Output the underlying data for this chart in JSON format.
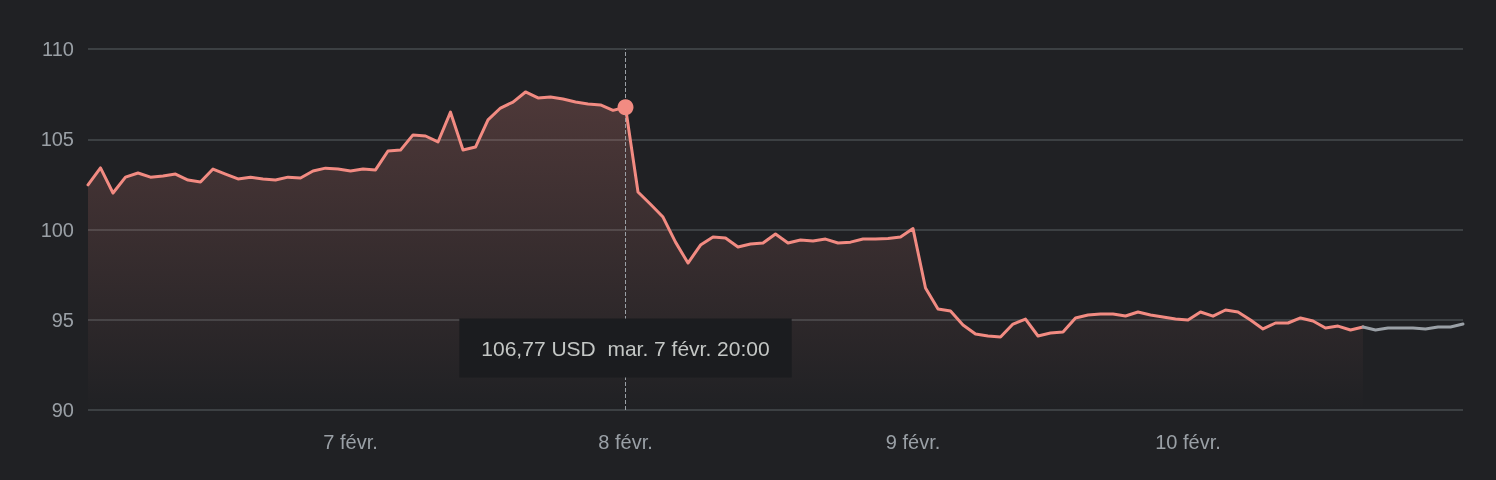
{
  "chart_data": {
    "type": "area",
    "categories": [
      null,
      null,
      null,
      null,
      null,
      null,
      null,
      null,
      null,
      null,
      null,
      null,
      null,
      null,
      null,
      null,
      null,
      null,
      null,
      null,
      null,
      "7 févr.",
      null,
      null,
      null,
      null,
      null,
      null,
      null,
      null,
      null,
      null,
      null,
      null,
      null,
      null,
      null,
      null,
      null,
      null,
      null,
      null,
      null,
      "8 févr.",
      null,
      null,
      null,
      null,
      null,
      null,
      null,
      null,
      null,
      null,
      null,
      null,
      null,
      null,
      null,
      null,
      null,
      null,
      null,
      null,
      null,
      null,
      "9 févr.",
      null,
      null,
      null,
      null,
      null,
      null,
      null,
      null,
      null,
      null,
      null,
      null,
      null,
      null,
      null,
      null,
      null,
      null,
      null,
      null,
      null,
      "10 févr.",
      null,
      null,
      null,
      null,
      null,
      null,
      null,
      null,
      null,
      null,
      null,
      null,
      null,
      null,
      null,
      null,
      null,
      null,
      null,
      null,
      null,
      null
    ],
    "series": [
      {
        "color": "#f28b82",
        "values": [
          102.47,
          103.41,
          102.02,
          102.9,
          103.13,
          102.9,
          102.96,
          103.07,
          102.74,
          102.63,
          103.35,
          103.07,
          102.8,
          102.9,
          102.8,
          102.74,
          102.9,
          102.85,
          103.24,
          103.4,
          103.35,
          103.24,
          103.35,
          103.3,
          104.35,
          104.4,
          105.24,
          105.18,
          104.85,
          106.5,
          104.4,
          104.57,
          106.07,
          106.73,
          107.06,
          107.62,
          107.29,
          107.34,
          107.23,
          107.06,
          106.95,
          106.9,
          106.6,
          106.77,
          102.08,
          101.4,
          100.69,
          99.3,
          98.14,
          99.14,
          99.58,
          99.53,
          99.03,
          99.2,
          99.25,
          99.75,
          99.25,
          99.42,
          99.36,
          99.47,
          99.25,
          99.3,
          99.47,
          99.47,
          99.5,
          99.58,
          100.05,
          96.76,
          95.6,
          95.48,
          94.71,
          94.21,
          94.1,
          94.04,
          94.76,
          95.04,
          94.1,
          94.27,
          94.32,
          95.1,
          95.26,
          95.32,
          95.32,
          95.21,
          95.43,
          95.26,
          95.15,
          95.04,
          94.99,
          95.43,
          95.2,
          95.54,
          95.43,
          94.99,
          94.49,
          94.82,
          94.82,
          95.1,
          94.93,
          94.54,
          94.65,
          94.43,
          94.6,
          null,
          null,
          null,
          null,
          null,
          null,
          null,
          null
        ]
      },
      {
        "type": "line",
        "color": "#9aa0a6",
        "values": [
          null,
          null,
          null,
          null,
          null,
          null,
          null,
          null,
          null,
          null,
          null,
          null,
          null,
          null,
          null,
          null,
          null,
          null,
          null,
          null,
          null,
          null,
          null,
          null,
          null,
          null,
          null,
          null,
          null,
          null,
          null,
          null,
          null,
          null,
          null,
          null,
          null,
          null,
          null,
          null,
          null,
          null,
          null,
          null,
          null,
          null,
          null,
          null,
          null,
          null,
          null,
          null,
          null,
          null,
          null,
          null,
          null,
          null,
          null,
          null,
          null,
          null,
          null,
          null,
          null,
          null,
          null,
          null,
          null,
          null,
          null,
          null,
          null,
          null,
          null,
          null,
          null,
          null,
          null,
          null,
          null,
          null,
          null,
          null,
          null,
          null,
          null,
          null,
          null,
          null,
          null,
          null,
          null,
          null,
          null,
          null,
          null,
          null,
          null,
          null,
          null,
          null,
          94.6,
          94.43,
          94.54,
          94.54,
          94.54,
          94.49,
          94.6,
          94.6,
          94.76
        ]
      }
    ],
    "ylim": [
      90,
      110
    ],
    "yticks": [
      90,
      95,
      100,
      105,
      110
    ],
    "grid": "y",
    "marker": "none",
    "line_style": "solid",
    "ref_lines": [
      {
        "axis": "x",
        "value": "8 févr.",
        "color": "#9aa0a6",
        "line_style": "dashed"
      }
    ],
    "annotations": [
      "106,77 USD  mar. 7 févr. 20:00"
    ]
  }
}
